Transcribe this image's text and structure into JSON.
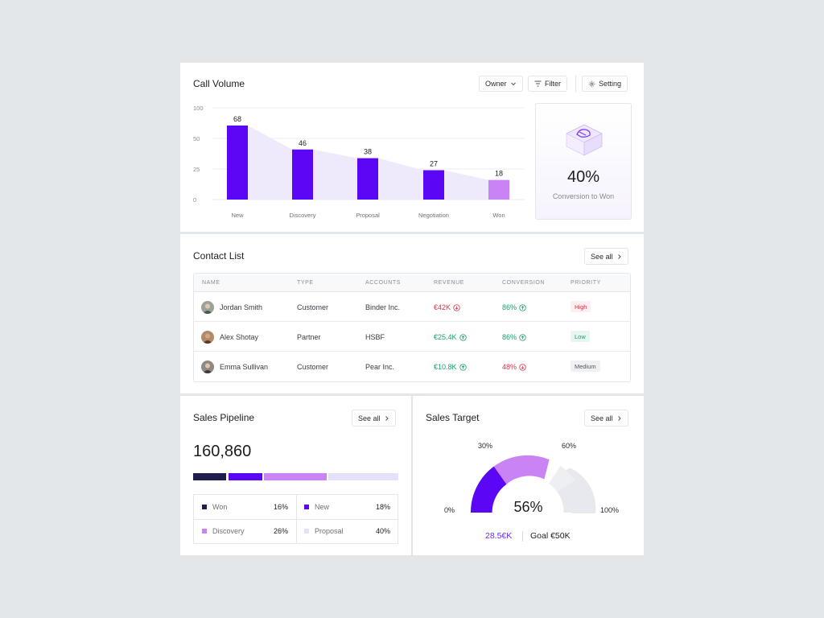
{
  "call_volume": {
    "title": "Call Volume",
    "buttons": {
      "owner": "Owner",
      "filter": "Filter",
      "setting": "Setting"
    },
    "conversion": {
      "value": "40%",
      "label": "Conversion to Won"
    },
    "chart_data": {
      "type": "bar",
      "categories": [
        "New",
        "Discovery",
        "Proposal",
        "Negotiation",
        "Won"
      ],
      "values": [
        68,
        46,
        38,
        27,
        18
      ],
      "yticks": [
        "0",
        "25",
        "50",
        "100"
      ],
      "colors": [
        "#5b07f5",
        "#5b07f5",
        "#5b07f5",
        "#5b07f5",
        "#c983f5"
      ],
      "area_color": "#efe9fc"
    }
  },
  "contact_list": {
    "title": "Contact List",
    "see_all": "See all",
    "headers": [
      "NAME",
      "TYPE",
      "ACCOUNTS",
      "REVENUE",
      "CONVERSION",
      "PRIORITY"
    ],
    "rows": [
      {
        "name": "Jordan Smith",
        "type": "Customer",
        "account": "Binder Inc.",
        "revenue": "€42K",
        "revenue_dir": "down",
        "conversion": "86%",
        "conversion_dir": "up",
        "priority": "High"
      },
      {
        "name": "Alex Shotay",
        "type": "Partner",
        "account": "HSBF",
        "revenue": "€25.4K",
        "revenue_dir": "up",
        "conversion": "86%",
        "conversion_dir": "up",
        "priority": "Low"
      },
      {
        "name": "Emma Sullivan",
        "type": "Customer",
        "account": "Pear Inc.",
        "revenue": "€10.8K",
        "revenue_dir": "up",
        "conversion": "48%",
        "conversion_dir": "down",
        "priority": "Medium"
      }
    ]
  },
  "sales_pipeline": {
    "title": "Sales Pipeline",
    "see_all": "See all",
    "total": "160,860",
    "segments": [
      {
        "label": "Won",
        "value": "16%",
        "color": "#1f1d4d"
      },
      {
        "label": "New",
        "value": "18%",
        "color": "#5b07f5"
      },
      {
        "label": "Discovery",
        "value": "26%",
        "color": "#c983f5"
      },
      {
        "label": "Proposal",
        "value": "40%",
        "color": "#e6e1fa"
      }
    ]
  },
  "sales_target": {
    "title": "Sales Target",
    "see_all": "See all",
    "percent": "56%",
    "labels": {
      "min": "0%",
      "mid1": "30%",
      "mid2": "60%",
      "max": "100%"
    },
    "current": "28.5€K",
    "goal": "Goal €50K",
    "colors": {
      "primary": "#5b07f5",
      "secondary": "#c983f5",
      "track": "#e8e9ee"
    }
  }
}
